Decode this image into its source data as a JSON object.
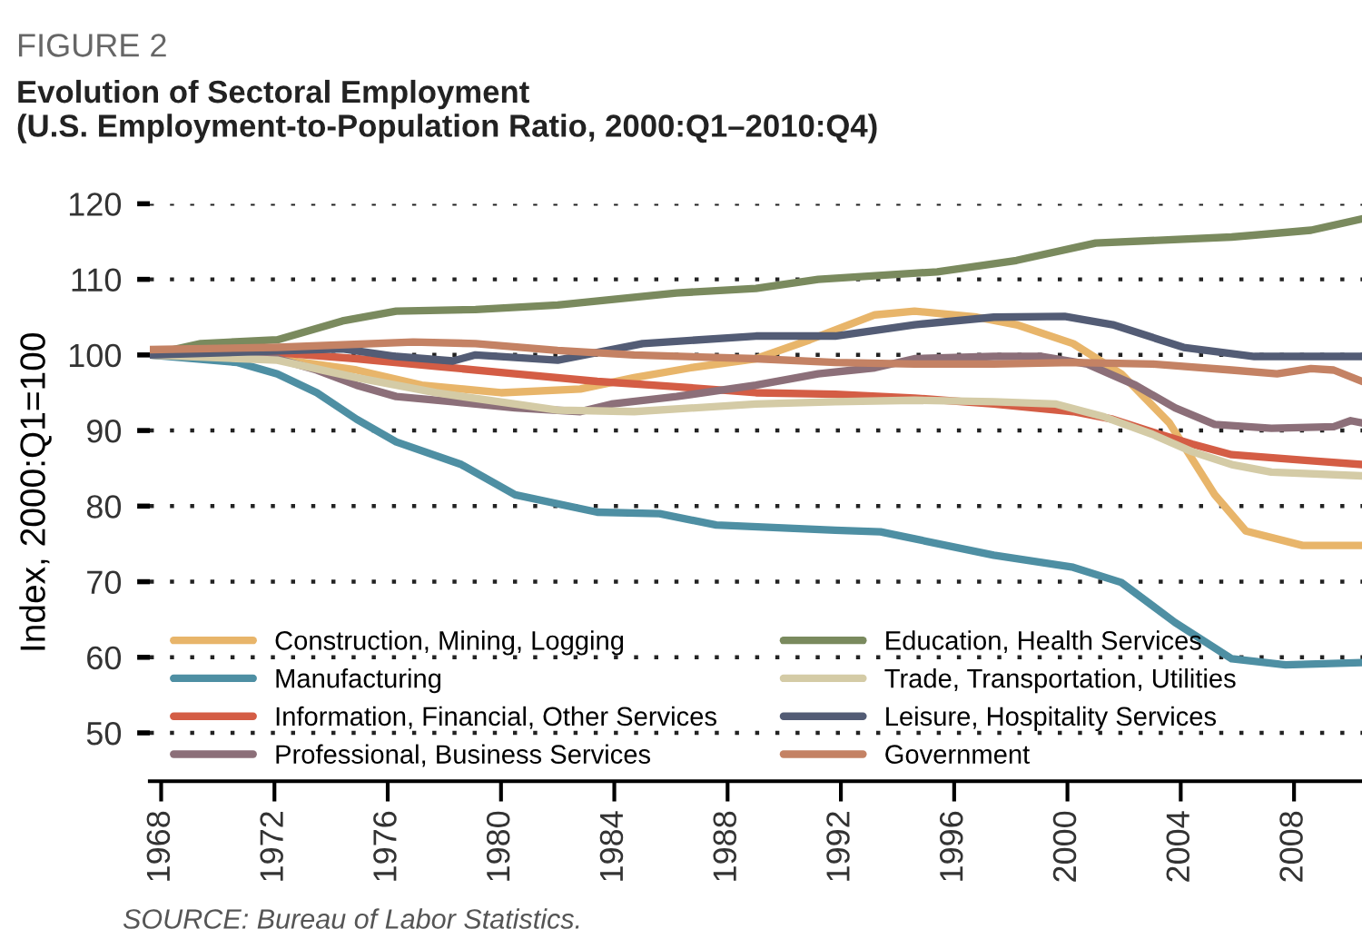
{
  "chart_data": {
    "type": "line",
    "title": "Evolution of Sectoral Employment\n(U.S. Employment-to-Population Ratio, 2000:Q1–2010:Q4)",
    "subtitle": "FIGURE 2",
    "ylabel": "Index, 2000:Q1=100",
    "annotations": [
      "SOURCE: Bureau of Labor Statistics."
    ],
    "xlim": [
      1967.6,
      2010.4
    ],
    "xticks": [
      1968,
      1972,
      1976,
      1980,
      1984,
      1988,
      1992,
      1996,
      2000,
      2004,
      2008
    ],
    "ylim": [
      43.6,
      120
    ],
    "yticks": [
      50,
      60,
      70,
      80,
      90,
      100,
      110,
      120
    ],
    "grid": "y",
    "legend": "bottom",
    "line_style": "solid",
    "marker": "none",
    "series": [
      {
        "name": "Construction, Mining, Logging",
        "color": "#e8b56a",
        "x": [
          1967.6,
          1972.1,
          1974.9,
          1977.2,
          1980,
          1982.8,
          1984.7,
          1986.7,
          1989,
          1990.9,
          1993.2,
          1994.6,
          1996.8,
          1998.2,
          2000.2,
          2001.9,
          2003.6,
          2005.2,
          2006.3,
          2008.3,
          2010.4
        ],
        "values": [
          100,
          99.5,
          98,
          96,
          95,
          95.5,
          97,
          98.3,
          99.5,
          102,
          105.3,
          105.8,
          105,
          104,
          101.5,
          97.5,
          91,
          81.5,
          76.7,
          74.8,
          74.8
        ]
      },
      {
        "name": "Manufacturing",
        "color": "#4e8fa3",
        "x": [
          1967.6,
          1970.7,
          1972.1,
          1973.5,
          1974.9,
          1976.3,
          1978.6,
          1980.5,
          1983.4,
          1985.6,
          1987.6,
          1991.8,
          1993.4,
          1997.4,
          2000.2,
          2001.9,
          2003.8,
          2005.8,
          2007.7,
          2010.4
        ],
        "values": [
          100,
          99,
          97.5,
          95,
          91.5,
          88.5,
          85.5,
          81.5,
          79.2,
          79,
          77.5,
          76.8,
          76.6,
          73.5,
          71.9,
          69.9,
          64.6,
          59.8,
          59,
          59.3
        ]
      },
      {
        "name": "Information, Financial, Other Services",
        "color": "#d45d45",
        "x": [
          1967.6,
          1972.1,
          1974.9,
          1977.7,
          1980.5,
          1983.4,
          1986.2,
          1989,
          1991.8,
          1994.6,
          1997.4,
          2000.2,
          2001.6,
          2003,
          2004.4,
          2005.8,
          2008.6,
          2010.4
        ],
        "values": [
          100.5,
          100.3,
          99.5,
          98.5,
          97.5,
          96.5,
          95.8,
          95,
          94.8,
          94.3,
          93.5,
          92.5,
          91.5,
          89.8,
          88.2,
          86.8,
          86,
          85.5
        ]
      },
      {
        "name": "Professional, Business Services",
        "color": "#8c6f79",
        "x": [
          1967.6,
          1972.1,
          1973.5,
          1974.9,
          1976.3,
          1978.3,
          1980.5,
          1982.8,
          1983.9,
          1986.2,
          1989,
          1991.2,
          1993.2,
          1994.6,
          1997.4,
          1999.1,
          2000.7,
          2002.4,
          2003.8,
          2005.2,
          2007.2,
          2009.4,
          2010,
          2010.4
        ],
        "values": [
          100,
          99.5,
          98,
          96,
          94.5,
          93.8,
          93,
          92.5,
          93.5,
          94.5,
          96,
          97.5,
          98.3,
          99.5,
          99.8,
          99.8,
          98.8,
          96,
          93,
          90.8,
          90.3,
          90.5,
          91.3,
          91
        ]
      },
      {
        "name": "Education, Health Services",
        "color": "#7a8a5e",
        "x": [
          1967.6,
          1969.4,
          1972.1,
          1974.4,
          1976.3,
          1979.1,
          1982,
          1986.2,
          1989,
          1991.2,
          1995.4,
          1998.2,
          2001,
          2005.8,
          2008.6,
          2010.4
        ],
        "values": [
          100,
          101.5,
          102,
          104.5,
          105.8,
          106,
          106.6,
          108.2,
          108.8,
          110,
          111,
          112.5,
          114.8,
          115.6,
          116.5,
          118
        ]
      },
      {
        "name": "Trade, Transportation, Utilities",
        "color": "#d4cba6",
        "x": [
          1967.6,
          1972.1,
          1974.9,
          1977.7,
          1980.5,
          1982,
          1984.7,
          1989,
          1991.8,
          1994.6,
          1997.4,
          1999.6,
          2001.3,
          2003,
          2004.4,
          2005.8,
          2007.2,
          2010.4
        ],
        "values": [
          100,
          99.3,
          97,
          95,
          93.5,
          92.7,
          92.5,
          93.5,
          93.8,
          94,
          93.8,
          93.5,
          91.8,
          89.5,
          87.2,
          85.5,
          84.5,
          84
        ]
      },
      {
        "name": "Leisure, Hospitality Services",
        "color": "#535c75",
        "x": [
          1967.6,
          1974.4,
          1976.3,
          1978.3,
          1979.1,
          1982,
          1985,
          1989,
          1991.8,
          1994.6,
          1997.4,
          1999.9,
          2001.6,
          2004.1,
          2006.6,
          2010.4
        ],
        "values": [
          100,
          100.8,
          99.8,
          99.2,
          100,
          99.3,
          101.5,
          102.5,
          102.5,
          104,
          105,
          105.1,
          104,
          101,
          99.8,
          99.8
        ]
      },
      {
        "name": "Government",
        "color": "#c48264",
        "x": [
          1967.6,
          1972.1,
          1976.9,
          1979.1,
          1982,
          1984.7,
          1989,
          1991.8,
          1994.6,
          1997.4,
          2000.2,
          2003,
          2005.8,
          2007.4,
          2008.6,
          2009.4,
          2010.4
        ],
        "values": [
          100.7,
          101,
          101.7,
          101.5,
          100.6,
          100,
          99.5,
          99,
          98.8,
          98.8,
          99,
          98.8,
          98,
          97.5,
          98.2,
          98,
          96.5
        ]
      }
    ]
  }
}
